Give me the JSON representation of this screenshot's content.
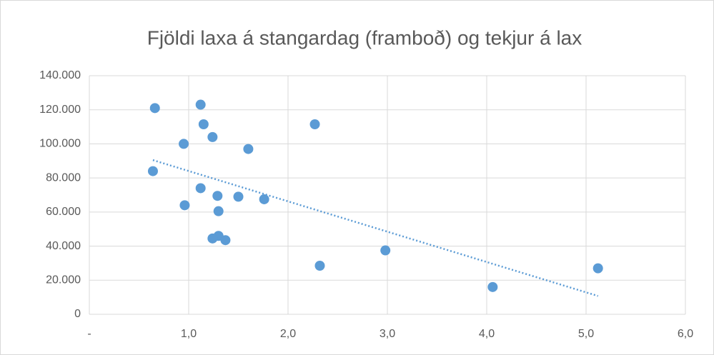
{
  "chart_data": {
    "type": "scatter",
    "title": "Fjöldi laxa á stangardag (framboð) og tekjur á lax",
    "series": [
      {
        "color": "#5b9bd5",
        "x": [
          0.66,
          1.12,
          1.15,
          1.24,
          0.95,
          1.6,
          2.27,
          0.64,
          1.12,
          1.29,
          1.5,
          1.76,
          0.96,
          1.3,
          1.3,
          1.24,
          1.37,
          2.98,
          2.32,
          5.12,
          4.06
        ],
        "values": [
          121000,
          123000,
          111500,
          104000,
          100000,
          97000,
          111500,
          84000,
          74000,
          69500,
          69000,
          67500,
          64000,
          60500,
          46000,
          44500,
          43500,
          37500,
          28500,
          27000,
          16000
        ]
      }
    ],
    "trendline": "linear",
    "xlim": [
      0,
      6
    ],
    "xticks": [
      {
        "value": 0,
        "label": "-"
      },
      {
        "value": 1,
        "label": "1,0"
      },
      {
        "value": 2,
        "label": "2,0"
      },
      {
        "value": 3,
        "label": "3,0"
      },
      {
        "value": 4,
        "label": "4,0"
      },
      {
        "value": 5,
        "label": "5,0"
      },
      {
        "value": 6,
        "label": "6,0"
      }
    ],
    "ylim": [
      0,
      140000
    ],
    "yticks": [
      0,
      {
        "value": 20000,
        "label": "20.000"
      },
      {
        "value": 40000,
        "label": "40.000"
      },
      {
        "value": 60000,
        "label": "60.000"
      },
      {
        "value": 80000,
        "label": "80.000"
      },
      {
        "value": 100000,
        "label": "100.000"
      },
      {
        "value": 120000,
        "label": "120.000"
      },
      {
        "value": 140000,
        "label": "140.000"
      }
    ],
    "grid": true
  }
}
